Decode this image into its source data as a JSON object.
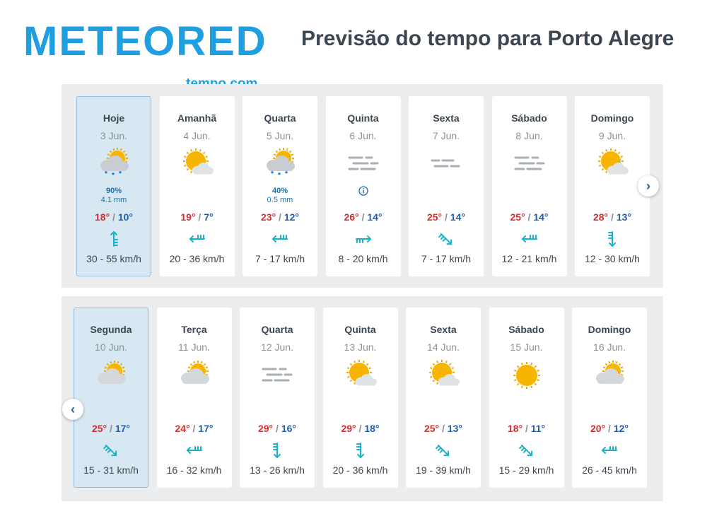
{
  "brand": {
    "logo_text": "METEORED",
    "logo_sub": "tempo.com",
    "color": "#1f9ee0"
  },
  "title": "Previsão do tempo para Porto Alegre",
  "week1": [
    {
      "day": "Hoje",
      "date": "3 Jun.",
      "icon": "rain-sun-icon",
      "precip_pct": "90%",
      "precip_mm": "4.1 mm",
      "max": "18°",
      "min": "10°",
      "wind_icon": "wind-arrow-north-icon",
      "wind": "30 - 55 km/h",
      "active": true
    },
    {
      "day": "Amanhã",
      "date": "4 Jun.",
      "icon": "partly-cloudy-icon",
      "max": "19°",
      "min": "7°",
      "wind_icon": "wind-arrow-west-icon",
      "wind": "20 - 36 km/h"
    },
    {
      "day": "Quarta",
      "date": "5 Jun.",
      "icon": "rain-sun-icon",
      "precip_pct": "40%",
      "precip_mm": "0.5 mm",
      "max": "23°",
      "min": "12°",
      "wind_icon": "wind-arrow-west-icon",
      "wind": "7 - 17 km/h"
    },
    {
      "day": "Quinta",
      "date": "6 Jun.",
      "icon": "fog-icon",
      "info": true,
      "max": "26°",
      "min": "14°",
      "wind_icon": "wind-arrow-east-icon",
      "wind": "8 - 20 km/h"
    },
    {
      "day": "Sexta",
      "date": "7 Jun.",
      "icon": "fog-light-icon",
      "max": "25°",
      "min": "14°",
      "wind_icon": "wind-arrow-southeast-icon",
      "wind": "7 - 17 km/h"
    },
    {
      "day": "Sábado",
      "date": "8 Jun.",
      "icon": "fog-icon",
      "max": "25°",
      "min": "14°",
      "wind_icon": "wind-arrow-west-icon",
      "wind": "12 - 21 km/h"
    },
    {
      "day": "Domingo",
      "date": "9 Jun.",
      "icon": "partly-cloudy-icon",
      "max": "28°",
      "min": "13°",
      "wind_icon": "wind-arrow-south-icon",
      "wind": "12 - 30 km/h"
    }
  ],
  "week2": [
    {
      "day": "Segunda",
      "date": "10 Jun.",
      "icon": "cloudy-sun-icon",
      "max": "25°",
      "min": "17°",
      "wind_icon": "wind-arrow-southeast-icon",
      "wind": "15 - 31 km/h",
      "active": true
    },
    {
      "day": "Terça",
      "date": "11 Jun.",
      "icon": "cloudy-sun-icon",
      "max": "24°",
      "min": "17°",
      "wind_icon": "wind-arrow-west-icon",
      "wind": "16 - 32 km/h"
    },
    {
      "day": "Quarta",
      "date": "12 Jun.",
      "icon": "fog-icon",
      "max": "29°",
      "min": "16°",
      "wind_icon": "wind-arrow-south-icon",
      "wind": "13 - 26 km/h"
    },
    {
      "day": "Quinta",
      "date": "13 Jun.",
      "icon": "partly-cloudy-icon",
      "max": "29°",
      "min": "18°",
      "wind_icon": "wind-arrow-south-icon",
      "wind": "20 - 36 km/h"
    },
    {
      "day": "Sexta",
      "date": "14 Jun.",
      "icon": "partly-cloudy-icon",
      "max": "25°",
      "min": "13°",
      "wind_icon": "wind-arrow-southeast-icon",
      "wind": "19 - 39 km/h"
    },
    {
      "day": "Sábado",
      "date": "15 Jun.",
      "icon": "sun-icon",
      "max": "18°",
      "min": "11°",
      "wind_icon": "wind-arrow-southeast-icon",
      "wind": "15 - 29 km/h"
    },
    {
      "day": "Domingo",
      "date": "16 Jun.",
      "icon": "cloudy-sun-icon",
      "max": "20°",
      "min": "12°",
      "wind_icon": "wind-arrow-west-icon",
      "wind": "26 - 45 km/h"
    }
  ],
  "nav": {
    "next": "›",
    "prev": "‹"
  }
}
